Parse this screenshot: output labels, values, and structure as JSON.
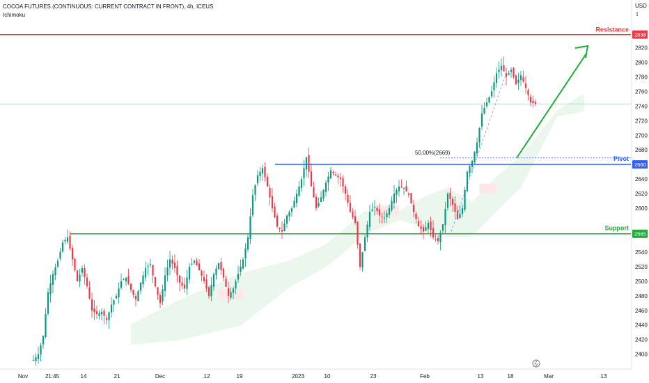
{
  "header": {
    "symbol_line": "COCOA FUTURES (CONTINUOUS: CURRENT CONTRACT IN FRONT), 4h, ICEUS",
    "indicator": "Ichimoku"
  },
  "axis": {
    "currency": "USD",
    "currency_sub": "t",
    "ticks": [
      2820,
      2800,
      2780,
      2760,
      2740,
      2720,
      2700,
      2680,
      2640,
      2620,
      2600,
      2540,
      2520,
      2500,
      2480,
      2460,
      2440,
      2420,
      2400
    ],
    "badges": [
      {
        "value": "2838",
        "color": "#f23645"
      },
      {
        "value": "2660",
        "color": "#2962ff"
      },
      {
        "value": "2565",
        "color": "#22ab36"
      }
    ]
  },
  "levels": {
    "resistance": {
      "label": "Resistance",
      "price": 2838,
      "color": "#e53935"
    },
    "pivot": {
      "label": "Pivot",
      "price": 2660,
      "color": "#2962ff"
    },
    "support": {
      "label": "Support",
      "price": 2565,
      "color": "#22ab36"
    },
    "fib": {
      "label": "50.00%(2669)",
      "price": 2669
    }
  },
  "chart_data": {
    "type": "candlestick",
    "title": "COCOA FUTURES (CONTINUOUS: CURRENT CONTRACT IN FRONT), 4h, ICEUS",
    "x_labels": [
      "Nov",
      "21:45",
      "14",
      "21",
      "Dec",
      "12",
      "19",
      "2023",
      "10",
      "23",
      "Feb",
      "13",
      "18",
      "Mar",
      "13"
    ],
    "ylim": [
      2393,
      2857
    ],
    "last_price": 2743,
    "anchors": [
      [
        0,
        2392
      ],
      [
        2,
        2400
      ],
      [
        4,
        2425
      ],
      [
        6,
        2485
      ],
      [
        8,
        2510
      ],
      [
        10,
        2528
      ],
      [
        12,
        2553
      ],
      [
        14,
        2560
      ],
      [
        16,
        2530
      ],
      [
        18,
        2500
      ],
      [
        20,
        2518
      ],
      [
        22,
        2493
      ],
      [
        24,
        2460
      ],
      [
        26,
        2455
      ],
      [
        28,
        2458
      ],
      [
        30,
        2447
      ],
      [
        32,
        2468
      ],
      [
        34,
        2480
      ],
      [
        36,
        2500
      ],
      [
        38,
        2505
      ],
      [
        40,
        2488
      ],
      [
        42,
        2475
      ],
      [
        44,
        2498
      ],
      [
        46,
        2518
      ],
      [
        48,
        2523
      ],
      [
        50,
        2493
      ],
      [
        52,
        2470
      ],
      [
        54,
        2508
      ],
      [
        56,
        2530
      ],
      [
        58,
        2518
      ],
      [
        60,
        2498
      ],
      [
        62,
        2490
      ],
      [
        64,
        2520
      ],
      [
        66,
        2528
      ],
      [
        68,
        2515
      ],
      [
        70,
        2500
      ],
      [
        72,
        2480
      ],
      [
        74,
        2510
      ],
      [
        76,
        2525
      ],
      [
        78,
        2505
      ],
      [
        80,
        2480
      ],
      [
        82,
        2490
      ],
      [
        84,
        2510
      ],
      [
        86,
        2530
      ],
      [
        88,
        2560
      ],
      [
        90,
        2618
      ],
      [
        92,
        2645
      ],
      [
        94,
        2655
      ],
      [
        96,
        2630
      ],
      [
        98,
        2600
      ],
      [
        100,
        2575
      ],
      [
        102,
        2568
      ],
      [
        104,
        2590
      ],
      [
        106,
        2600
      ],
      [
        108,
        2620
      ],
      [
        110,
        2640
      ],
      [
        112,
        2670
      ],
      [
        114,
        2630
      ],
      [
        116,
        2600
      ],
      [
        118,
        2615
      ],
      [
        120,
        2635
      ],
      [
        122,
        2652
      ],
      [
        124,
        2645
      ],
      [
        126,
        2640
      ],
      [
        128,
        2620
      ],
      [
        130,
        2595
      ],
      [
        132,
        2580
      ],
      [
        134,
        2520
      ],
      [
        136,
        2560
      ],
      [
        138,
        2595
      ],
      [
        140,
        2602
      ],
      [
        142,
        2590
      ],
      [
        144,
        2587
      ],
      [
        146,
        2600
      ],
      [
        148,
        2620
      ],
      [
        150,
        2630
      ],
      [
        152,
        2628
      ],
      [
        154,
        2618
      ],
      [
        156,
        2595
      ],
      [
        158,
        2575
      ],
      [
        160,
        2568
      ],
      [
        162,
        2580
      ],
      [
        164,
        2560
      ],
      [
        166,
        2555
      ],
      [
        168,
        2578
      ],
      [
        170,
        2620
      ],
      [
        172,
        2605
      ],
      [
        174,
        2585
      ],
      [
        176,
        2600
      ],
      [
        178,
        2650
      ],
      [
        180,
        2665
      ],
      [
        182,
        2690
      ],
      [
        184,
        2730
      ],
      [
        186,
        2745
      ],
      [
        188,
        2760
      ],
      [
        190,
        2785
      ],
      [
        192,
        2795
      ],
      [
        194,
        2780
      ],
      [
        196,
        2790
      ],
      [
        198,
        2770
      ],
      [
        200,
        2782
      ],
      [
        202,
        2765
      ],
      [
        204,
        2745
      ],
      [
        206,
        2743
      ]
    ],
    "cloud": [
      [
        40,
        2427
      ],
      [
        60,
        2447
      ],
      [
        85,
        2475
      ],
      [
        105,
        2510
      ],
      [
        120,
        2535
      ],
      [
        136,
        2580
      ],
      [
        150,
        2590
      ],
      [
        160,
        2595
      ],
      [
        170,
        2595
      ],
      [
        180,
        2585
      ],
      [
        190,
        2620
      ],
      [
        200,
        2650
      ],
      [
        215,
        2730
      ],
      [
        226,
        2745
      ]
    ]
  }
}
